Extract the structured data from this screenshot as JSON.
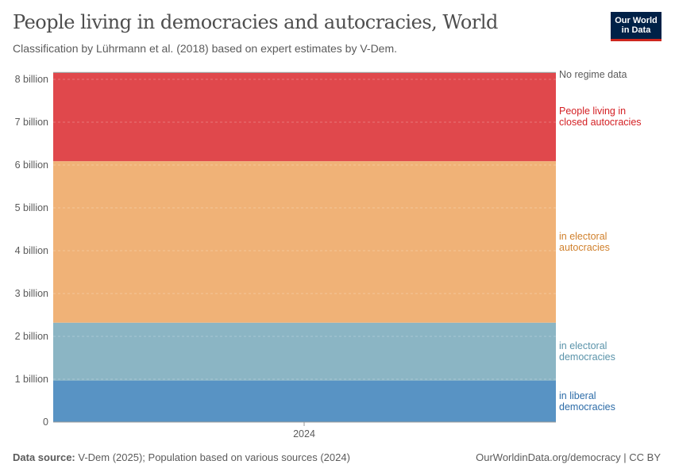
{
  "header": {
    "title": "People living in democracies and autocracies, World",
    "subtitle": "Classification by Lührmann et al. (2018) based on expert estimates by V-Dem.",
    "logo": "Our World in Data"
  },
  "footer": {
    "source_label": "Data source:",
    "source": "V-Dem (2025); Population based on various sources (2024)",
    "link": "OurWorldinData.org/democracy | CC BY"
  },
  "chart_data": {
    "type": "area",
    "stacked": true,
    "x": [
      "2024"
    ],
    "ylim": [
      0,
      8
    ],
    "y_ticks": [
      "0",
      "1 billion",
      "2 billion",
      "3 billion",
      "4 billion",
      "5 billion",
      "6 billion",
      "7 billion",
      "8 billion"
    ],
    "series": [
      {
        "name": "in liberal democracies",
        "values": [
          0.97
        ],
        "color": "#5893c4"
      },
      {
        "name": "in electoral democracies",
        "values": [
          1.35
        ],
        "color": "#8bb5c4"
      },
      {
        "name": "in electoral autocracies",
        "values": [
          3.77
        ],
        "color": "#f0b277"
      },
      {
        "name": "People living in closed autocracies",
        "values": [
          2.06
        ],
        "color": "#e0484c"
      },
      {
        "name": "No regime data",
        "values": [
          0.02
        ],
        "color": "#9a9a9a"
      }
    ],
    "label_colors": [
      "#2d6ca8",
      "#5a93aa",
      "#d0802c",
      "#d42125",
      "#5b5b5b"
    ]
  }
}
